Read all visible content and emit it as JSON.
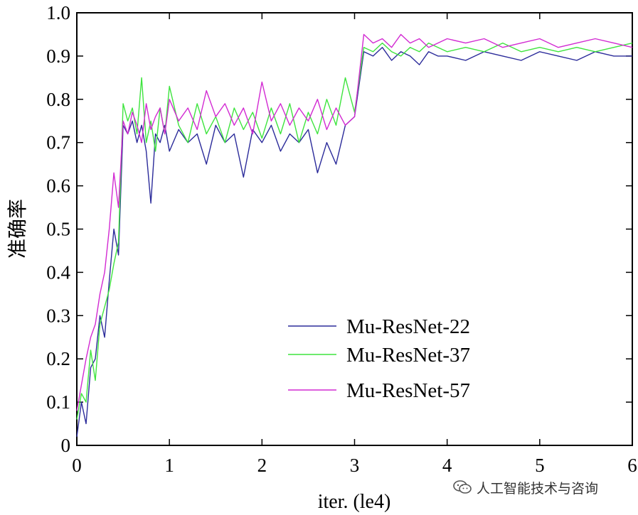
{
  "chart_data": {
    "type": "line",
    "title": "",
    "xlabel": "iter. (le4)",
    "ylabel": "准确率",
    "xlim": [
      0,
      6
    ],
    "ylim": [
      0,
      1.0
    ],
    "xticks": [
      "0",
      "1",
      "2",
      "3",
      "4",
      "5",
      "6"
    ],
    "yticks": [
      "0",
      "0.1",
      "0.2",
      "0.3",
      "0.4",
      "0.5",
      "0.6",
      "0.7",
      "0.8",
      "0.9",
      "1.0"
    ],
    "legend_position": "center-right",
    "grid": false,
    "series": [
      {
        "name": "Mu-ResNet-22",
        "color": "#2b2b9a",
        "x": [
          0.0,
          0.05,
          0.1,
          0.15,
          0.2,
          0.25,
          0.3,
          0.35,
          0.4,
          0.45,
          0.5,
          0.55,
          0.6,
          0.65,
          0.7,
          0.75,
          0.8,
          0.85,
          0.9,
          0.95,
          1.0,
          1.1,
          1.2,
          1.3,
          1.4,
          1.5,
          1.6,
          1.7,
          1.8,
          1.9,
          2.0,
          2.1,
          2.2,
          2.3,
          2.4,
          2.5,
          2.6,
          2.7,
          2.8,
          2.9,
          3.0,
          3.1,
          3.2,
          3.3,
          3.4,
          3.5,
          3.6,
          3.7,
          3.8,
          3.9,
          4.0,
          4.2,
          4.4,
          4.6,
          4.8,
          5.0,
          5.2,
          5.4,
          5.6,
          5.8,
          6.0
        ],
        "y": [
          0.02,
          0.1,
          0.05,
          0.18,
          0.2,
          0.3,
          0.25,
          0.38,
          0.5,
          0.44,
          0.74,
          0.72,
          0.75,
          0.7,
          0.74,
          0.68,
          0.56,
          0.72,
          0.7,
          0.74,
          0.68,
          0.73,
          0.7,
          0.72,
          0.65,
          0.74,
          0.7,
          0.72,
          0.62,
          0.73,
          0.7,
          0.74,
          0.68,
          0.72,
          0.7,
          0.73,
          0.63,
          0.7,
          0.65,
          0.74,
          0.76,
          0.91,
          0.9,
          0.92,
          0.89,
          0.91,
          0.9,
          0.88,
          0.91,
          0.9,
          0.9,
          0.89,
          0.91,
          0.9,
          0.89,
          0.91,
          0.9,
          0.89,
          0.91,
          0.9,
          0.9
        ]
      },
      {
        "name": "Mu-ResNet-37",
        "color": "#3ee43e",
        "x": [
          0.0,
          0.05,
          0.1,
          0.15,
          0.2,
          0.25,
          0.3,
          0.35,
          0.4,
          0.45,
          0.5,
          0.55,
          0.6,
          0.65,
          0.7,
          0.75,
          0.8,
          0.85,
          0.9,
          0.95,
          1.0,
          1.1,
          1.2,
          1.3,
          1.4,
          1.5,
          1.6,
          1.7,
          1.8,
          1.9,
          2.0,
          2.1,
          2.2,
          2.3,
          2.4,
          2.5,
          2.6,
          2.7,
          2.8,
          2.9,
          3.0,
          3.1,
          3.2,
          3.3,
          3.4,
          3.5,
          3.6,
          3.7,
          3.8,
          3.9,
          4.0,
          4.2,
          4.4,
          4.6,
          4.8,
          5.0,
          5.2,
          5.4,
          5.6,
          5.8,
          6.0
        ],
        "y": [
          0.06,
          0.12,
          0.1,
          0.22,
          0.15,
          0.28,
          0.32,
          0.36,
          0.42,
          0.47,
          0.79,
          0.75,
          0.78,
          0.72,
          0.85,
          0.7,
          0.75,
          0.68,
          0.78,
          0.72,
          0.83,
          0.74,
          0.7,
          0.79,
          0.72,
          0.76,
          0.7,
          0.78,
          0.73,
          0.77,
          0.71,
          0.78,
          0.72,
          0.79,
          0.7,
          0.77,
          0.72,
          0.8,
          0.74,
          0.85,
          0.77,
          0.92,
          0.91,
          0.93,
          0.91,
          0.9,
          0.92,
          0.91,
          0.93,
          0.92,
          0.91,
          0.92,
          0.91,
          0.93,
          0.91,
          0.92,
          0.91,
          0.92,
          0.91,
          0.92,
          0.93
        ]
      },
      {
        "name": "Mu-ResNet-57",
        "color": "#d22ad2",
        "x": [
          0.0,
          0.05,
          0.1,
          0.15,
          0.2,
          0.25,
          0.3,
          0.35,
          0.4,
          0.45,
          0.5,
          0.55,
          0.6,
          0.65,
          0.7,
          0.75,
          0.8,
          0.85,
          0.9,
          0.95,
          1.0,
          1.1,
          1.2,
          1.3,
          1.4,
          1.5,
          1.6,
          1.7,
          1.8,
          1.9,
          2.0,
          2.1,
          2.2,
          2.3,
          2.4,
          2.5,
          2.6,
          2.7,
          2.8,
          2.9,
          3.0,
          3.1,
          3.2,
          3.3,
          3.4,
          3.5,
          3.6,
          3.7,
          3.8,
          3.9,
          4.0,
          4.2,
          4.4,
          4.6,
          4.8,
          5.0,
          5.2,
          5.4,
          5.6,
          5.8,
          6.0
        ],
        "y": [
          0.08,
          0.14,
          0.2,
          0.25,
          0.28,
          0.35,
          0.4,
          0.5,
          0.63,
          0.55,
          0.75,
          0.72,
          0.77,
          0.74,
          0.7,
          0.79,
          0.73,
          0.76,
          0.78,
          0.72,
          0.8,
          0.75,
          0.78,
          0.73,
          0.82,
          0.76,
          0.79,
          0.74,
          0.78,
          0.72,
          0.84,
          0.75,
          0.79,
          0.74,
          0.78,
          0.75,
          0.8,
          0.73,
          0.78,
          0.74,
          0.76,
          0.95,
          0.93,
          0.94,
          0.92,
          0.95,
          0.93,
          0.94,
          0.92,
          0.93,
          0.94,
          0.93,
          0.94,
          0.92,
          0.93,
          0.94,
          0.92,
          0.93,
          0.94,
          0.93,
          0.92
        ]
      }
    ]
  },
  "watermark": {
    "text": "人工智能技术与咨询",
    "icon": "wechat-icon"
  }
}
